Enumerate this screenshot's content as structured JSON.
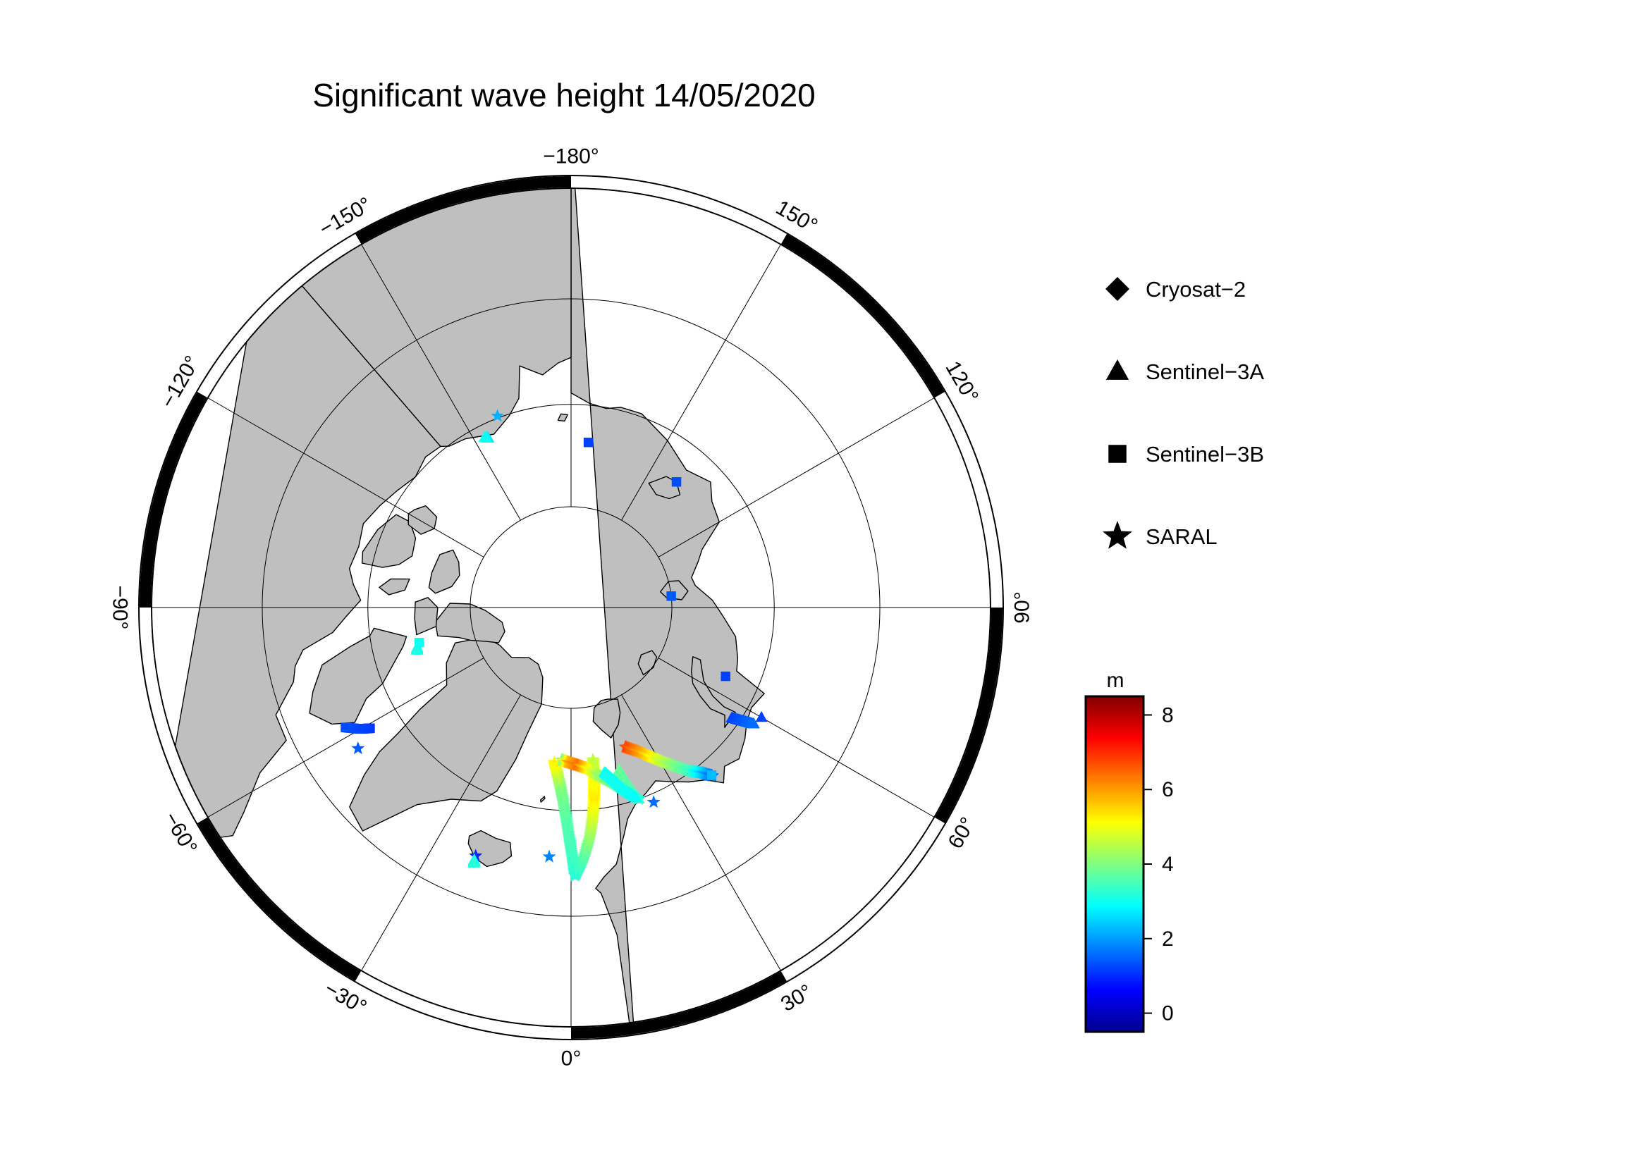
{
  "title": "Significant wave height 14/05/2020",
  "longitude_labels": [
    {
      "lon": 0,
      "text": "0°"
    },
    {
      "lon": 30,
      "text": "30°"
    },
    {
      "lon": 60,
      "text": "60°"
    },
    {
      "lon": 90,
      "text": "90°"
    },
    {
      "lon": 120,
      "text": "120°"
    },
    {
      "lon": 150,
      "text": "150°"
    },
    {
      "lon": 180,
      "text": "−180°"
    },
    {
      "lon": -150,
      "text": "−150°"
    },
    {
      "lon": -120,
      "text": "−120°"
    },
    {
      "lon": -90,
      "text": "−90°"
    },
    {
      "lon": -60,
      "text": "−60°"
    },
    {
      "lon": -30,
      "text": "−30°"
    }
  ],
  "legend": [
    {
      "symbol": "diamond",
      "label": "Cryosat−2"
    },
    {
      "symbol": "triangle",
      "label": "Sentinel−3A"
    },
    {
      "symbol": "square",
      "label": "Sentinel−3B"
    },
    {
      "symbol": "star",
      "label": "SARAL"
    }
  ],
  "colorbar": {
    "unit": "m",
    "min": -0.5,
    "max": 8.5,
    "ticks": [
      0,
      2,
      4,
      6,
      8
    ],
    "colormap": "jet"
  },
  "colors": {
    "land": "#bfbfbf",
    "ocean": "#ffffff",
    "frame": "#000000"
  },
  "chart_data": {
    "type": "scatter",
    "projection": "north-polar-stereographic",
    "variable": "Significant wave height (m)",
    "tracks": [
      {
        "satellite": "SARAL",
        "symbol": "star",
        "points": [
          [
            0.8,
            63.8,
            3.2
          ],
          [
            0.3,
            65.5,
            3.4
          ],
          [
            -0.4,
            67.2,
            3.5
          ],
          [
            -1.2,
            69.0,
            3.6
          ],
          [
            -2.3,
            70.8,
            3.8
          ],
          [
            -3.5,
            72.3,
            4.0
          ],
          [
            -4.8,
            73.5,
            4.6
          ],
          [
            -6.2,
            74.6,
            5.2
          ]
        ]
      },
      {
        "satellite": "SARAL",
        "symbol": "star",
        "points": [
          [
            1.0,
            63.8,
            3.2
          ],
          [
            3.0,
            65.5,
            3.6
          ],
          [
            4.8,
            67.5,
            4.2
          ],
          [
            6.0,
            69.4,
            4.8
          ],
          [
            7.0,
            71.3,
            5.3
          ],
          [
            7.8,
            73.2,
            5.0
          ],
          [
            8.2,
            74.8,
            4.6
          ]
        ]
      },
      {
        "satellite": "SARAL",
        "symbol": "star",
        "points": [
          [
            -3.5,
            74.9,
            3.9
          ],
          [
            -1.0,
            74.7,
            5.8
          ],
          [
            2.5,
            74.4,
            6.4
          ],
          [
            6.0,
            74.0,
            5.2
          ],
          [
            9.5,
            73.2,
            4.2
          ],
          [
            13.5,
            72.2,
            3.8
          ],
          [
            17.0,
            71.0,
            3.2
          ],
          [
            19.5,
            70.0,
            3.0
          ]
        ]
      },
      {
        "satellite": "SARAL",
        "symbol": "star",
        "points": [
          [
            21.3,
            75.2,
            6.8
          ],
          [
            25.5,
            74.2,
            6.0
          ],
          [
            29.5,
            72.8,
            4.8
          ],
          [
            33.0,
            71.4,
            4.0
          ],
          [
            36.0,
            70.1,
            3.4
          ],
          [
            38.5,
            69.2,
            2.4
          ],
          [
            40.0,
            68.4,
            1.5
          ]
        ]
      },
      {
        "satellite": "SARAL",
        "symbol": "star",
        "points": [
          [
            -5.0,
            65.5,
            1.8
          ]
        ]
      },
      {
        "satellite": "SARAL",
        "symbol": "star",
        "points": [
          [
            -21.0,
            64.0,
            0.9
          ]
        ]
      },
      {
        "satellite": "SARAL",
        "symbol": "star",
        "points": [
          [
            -159.0,
            69.8,
            2.2
          ]
        ]
      },
      {
        "satellite": "SARAL",
        "symbol": "star",
        "points": [
          [
            -56.5,
            65.0,
            1.4
          ]
        ]
      },
      {
        "satellite": "SARAL",
        "symbol": "star",
        "points": [
          [
            23.0,
            69.2,
            1.6
          ]
        ]
      },
      {
        "satellite": "Sentinel-3A",
        "symbol": "triangle",
        "points": [
          [
            16.5,
            73.3,
            3.8
          ],
          [
            17.5,
            72.2,
            3.7
          ],
          [
            18.5,
            71.0,
            3.6
          ],
          [
            19.5,
            70.0,
            3.5
          ]
        ]
      },
      {
        "satellite": "Sentinel-3A",
        "symbol": "triangle",
        "points": [
          [
            11.5,
            73.4,
            3.0
          ],
          [
            14.0,
            72.4,
            3.0
          ],
          [
            16.5,
            71.2,
            3.0
          ],
          [
            19.0,
            70.2,
            2.9
          ]
        ]
      },
      {
        "satellite": "Sentinel-3A",
        "symbol": "triangle",
        "points": [
          [
            55.5,
            70.8,
            1.2
          ],
          [
            56.5,
            69.8,
            1.4
          ],
          [
            57.5,
            68.7,
            1.6
          ]
        ]
      },
      {
        "satellite": "Sentinel-3A",
        "symbol": "triangle",
        "points": [
          [
            60.0,
            68.4,
            1.2
          ]
        ]
      },
      {
        "satellite": "Sentinel-3A",
        "symbol": "triangle",
        "points": [
          [
            -21.0,
            63.6,
            2.9
          ],
          [
            -20.8,
            63.3,
            3.2
          ]
        ]
      },
      {
        "satellite": "Sentinel-3A",
        "symbol": "triangle",
        "points": [
          [
            -154.0,
            71.4,
            2.6
          ],
          [
            -153.0,
            71.2,
            3.0
          ]
        ]
      },
      {
        "satellite": "Sentinel-3A",
        "symbol": "triangle",
        "points": [
          [
            -75.5,
            74.3,
            3.0
          ],
          [
            -74.5,
            74.2,
            3.1
          ]
        ]
      },
      {
        "satellite": "Sentinel-3B",
        "symbol": "square",
        "points": [
          [
            174.0,
            73.6,
            1.2
          ]
        ]
      },
      {
        "satellite": "Sentinel-3B",
        "symbol": "square",
        "points": [
          [
            140.0,
            73.8,
            1.3
          ]
        ]
      },
      {
        "satellite": "Sentinel-3B",
        "symbol": "square",
        "points": [
          [
            96.5,
            80.0,
            1.4
          ]
        ]
      },
      {
        "satellite": "Sentinel-3B",
        "symbol": "square",
        "points": [
          [
            66.0,
            73.3,
            1.2
          ]
        ]
      },
      {
        "satellite": "Sentinel-3B",
        "symbol": "square",
        "points": [
          [
            -59.0,
            67.0,
            1.1
          ],
          [
            -60.0,
            66.2,
            1.2
          ],
          [
            -62.0,
            65.0,
            1.3
          ]
        ]
      },
      {
        "satellite": "Sentinel-3B",
        "symbol": "square",
        "points": [
          [
            -77.0,
            74.6,
            3.0
          ]
        ]
      },
      {
        "satellite": "Sentinel-3B",
        "symbol": "square",
        "points": [
          [
            40.0,
            68.5,
            2.3
          ]
        ]
      }
    ]
  }
}
